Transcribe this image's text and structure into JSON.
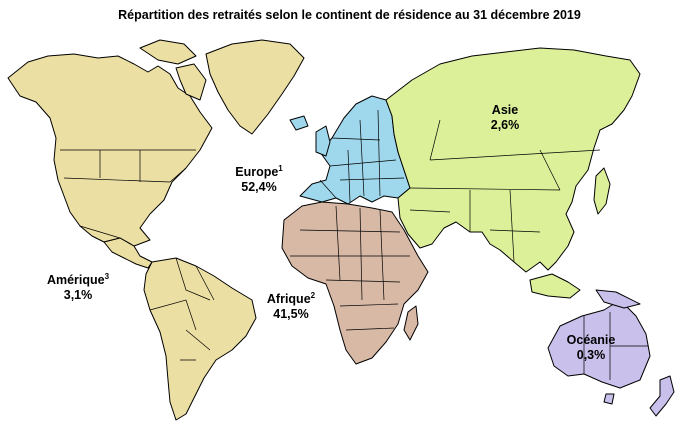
{
  "title": "Répartition des retraités selon le continent de résidence au 31 décembre 2019",
  "colors": {
    "amerique": "#ecdfa3",
    "europe": "#9fd8ec",
    "afrique": "#d8b9a6",
    "asie": "#dcf09a",
    "oceanie": "#c9c0eb",
    "borders": "#000000",
    "background": "#ffffff"
  },
  "regions": {
    "europe": {
      "name": "Europe",
      "note": "1",
      "value": "52,4%"
    },
    "asie": {
      "name": "Asie",
      "note": "",
      "value": "2,6%"
    },
    "afrique": {
      "name": "Afrique",
      "note": "2",
      "value": "41,5%"
    },
    "amerique": {
      "name": "Amérique",
      "note": "3",
      "value": "3,1%"
    },
    "oceanie": {
      "name": "Océanie",
      "note": "",
      "value": "0,3%"
    }
  }
}
